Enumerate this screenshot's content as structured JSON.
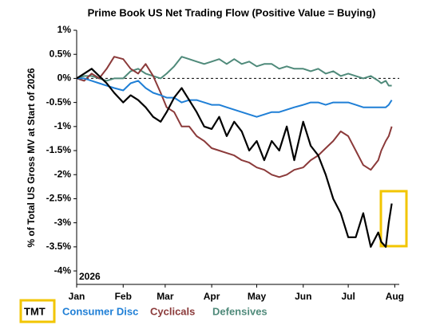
{
  "chart_data": {
    "type": "line",
    "title": "Prime Book US Net Trading Flow (Positive Value = Buying)",
    "y_label": "% of Total US Gross MV at Start of 2026",
    "annotation": "2026",
    "x": [
      0,
      5,
      10,
      15,
      20,
      25,
      31,
      36,
      41,
      46,
      51,
      56,
      60,
      65,
      70,
      75,
      80,
      85,
      90,
      95,
      100,
      105,
      110,
      115,
      120,
      125,
      130,
      135,
      140,
      145,
      151,
      156,
      161,
      166,
      171,
      176,
      181,
      186,
      191,
      196,
      201,
      203,
      206,
      208,
      210
    ],
    "xlim": [
      0,
      215
    ],
    "xticks": [
      {
        "value": 0,
        "label": "Jan"
      },
      {
        "value": 31,
        "label": "Feb"
      },
      {
        "value": 59,
        "label": "Mar"
      },
      {
        "value": 90,
        "label": "Apr"
      },
      {
        "value": 120,
        "label": "May"
      },
      {
        "value": 151,
        "label": "Jun"
      },
      {
        "value": 181,
        "label": "Jul"
      },
      {
        "value": 212,
        "label": "Aug"
      }
    ],
    "ylim": [
      -4.28,
      1
    ],
    "yticks": [
      {
        "value": 1,
        "label": "1%"
      },
      {
        "value": 0.5,
        "label": "0.5%"
      },
      {
        "value": 0,
        "label": "0%"
      },
      {
        "value": -0.5,
        "label": "-0.5%"
      },
      {
        "value": -1,
        "label": "-1%"
      },
      {
        "value": -1.5,
        "label": "-1.5%"
      },
      {
        "value": -2,
        "label": "-2%"
      },
      {
        "value": -2.5,
        "label": "-2.5%"
      },
      {
        "value": -3,
        "label": "-3%"
      },
      {
        "value": -3.5,
        "label": "-3.5%"
      },
      {
        "value": -4,
        "label": "-4%"
      }
    ],
    "series": [
      {
        "name": "TMT",
        "color": "#000000",
        "values": [
          0,
          0.1,
          0.2,
          0.05,
          -0.1,
          -0.3,
          -0.5,
          -0.35,
          -0.45,
          -0.6,
          -0.8,
          -0.9,
          -0.7,
          -0.4,
          -0.2,
          -0.45,
          -0.7,
          -1.0,
          -1.05,
          -0.8,
          -1.2,
          -0.9,
          -1.1,
          -1.5,
          -1.3,
          -1.7,
          -1.3,
          -1.5,
          -1.0,
          -1.7,
          -0.9,
          -1.4,
          -1.6,
          -2.0,
          -2.5,
          -2.8,
          -3.3,
          -3.3,
          -2.8,
          -3.5,
          -3.2,
          -3.4,
          -3.5,
          -3.0,
          -2.6
        ]
      },
      {
        "name": "Consumer Disc",
        "color": "#1f7fd6",
        "values": [
          0,
          0,
          -0.05,
          -0.1,
          -0.15,
          -0.2,
          -0.25,
          -0.1,
          -0.05,
          -0.2,
          -0.3,
          -0.35,
          -0.4,
          -0.4,
          -0.5,
          -0.45,
          -0.45,
          -0.5,
          -0.55,
          -0.55,
          -0.6,
          -0.65,
          -0.7,
          -0.75,
          -0.8,
          -0.75,
          -0.7,
          -0.7,
          -0.65,
          -0.6,
          -0.55,
          -0.5,
          -0.5,
          -0.55,
          -0.5,
          -0.5,
          -0.5,
          -0.55,
          -0.6,
          -0.6,
          -0.6,
          -0.6,
          -0.6,
          -0.55,
          -0.45
        ]
      },
      {
        "name": "Cyclicals",
        "color": "#8b3a3a",
        "values": [
          0,
          -0.05,
          0.1,
          0.0,
          0.2,
          0.45,
          0.4,
          0.2,
          0.1,
          0.3,
          0.05,
          -0.3,
          -0.6,
          -0.7,
          -1.0,
          -1.0,
          -1.2,
          -1.3,
          -1.45,
          -1.5,
          -1.55,
          -1.6,
          -1.7,
          -1.75,
          -1.85,
          -1.9,
          -2.0,
          -2.05,
          -2.0,
          -1.9,
          -1.85,
          -1.7,
          -1.6,
          -1.45,
          -1.3,
          -1.1,
          -1.2,
          -1.5,
          -1.8,
          -1.9,
          -1.7,
          -1.5,
          -1.3,
          -1.2,
          -1.0
        ]
      },
      {
        "name": "Defensives",
        "color": "#4f8a7a",
        "values": [
          0,
          0.05,
          0.05,
          0.0,
          -0.05,
          0.0,
          0.0,
          0.15,
          0.2,
          0.1,
          0.05,
          0.0,
          0.1,
          0.25,
          0.45,
          0.4,
          0.35,
          0.3,
          0.35,
          0.4,
          0.3,
          0.4,
          0.3,
          0.35,
          0.25,
          0.3,
          0.3,
          0.2,
          0.25,
          0.2,
          0.2,
          0.15,
          0.2,
          0.1,
          0.15,
          0.05,
          0.1,
          0.05,
          0.0,
          0.05,
          -0.05,
          -0.1,
          -0.05,
          -0.15,
          -0.15
        ]
      }
    ]
  }
}
